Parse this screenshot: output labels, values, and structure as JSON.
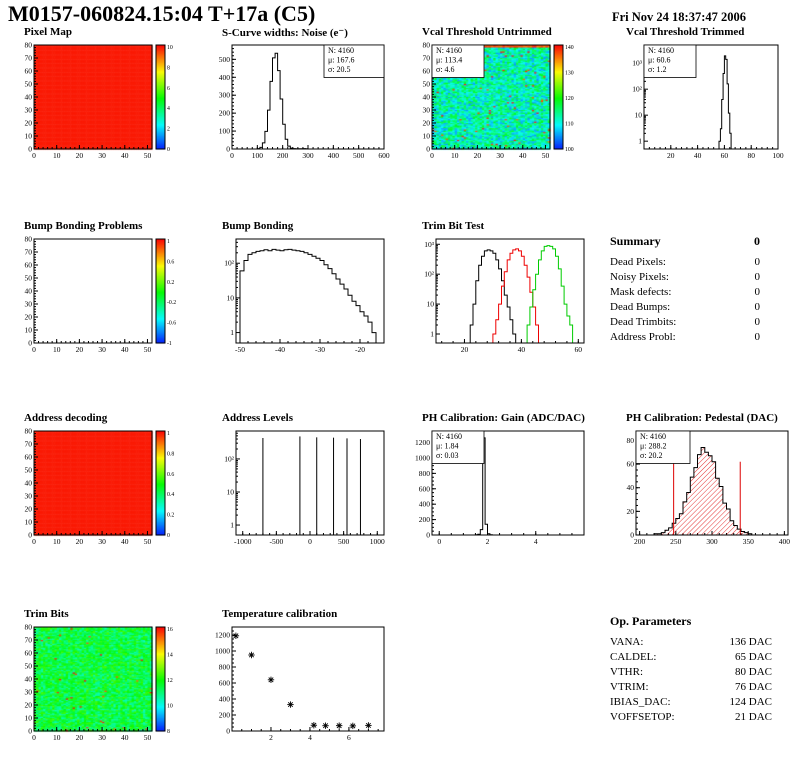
{
  "header": {
    "title": "M0157-060824.15:04 T+17a (C5)",
    "datetime": "Fri Nov 24 18:37:47 2006"
  },
  "summary": {
    "title": "Summary",
    "total": "0",
    "rows": [
      {
        "label": "Dead Pixels:",
        "value": "0"
      },
      {
        "label": "Noisy Pixels:",
        "value": "0"
      },
      {
        "label": "Mask defects:",
        "value": "0"
      },
      {
        "label": "Dead Bumps:",
        "value": "0"
      },
      {
        "label": "Dead Trimbits:",
        "value": "0"
      },
      {
        "label": "Address Probl:",
        "value": "0"
      }
    ]
  },
  "op_parameters": {
    "title": "Op. Parameters",
    "rows": [
      {
        "label": "VANA:",
        "value": "136 DAC"
      },
      {
        "label": "CALDEL:",
        "value": "65 DAC"
      },
      {
        "label": "VTHR:",
        "value": "80 DAC"
      },
      {
        "label": "VTRIM:",
        "value": "76 DAC"
      },
      {
        "label": "IBIAS_DAC:",
        "value": "124 DAC"
      },
      {
        "label": "VOFFSETOP:",
        "value": "21 DAC"
      }
    ]
  },
  "chart_data": [
    {
      "id": "pixel-map",
      "title": "Pixel Map",
      "type": "heatmap",
      "fill": "solid",
      "xrange": [
        0,
        52
      ],
      "yrange": [
        0,
        80
      ],
      "xticks": [
        0,
        10,
        20,
        30,
        40,
        50
      ],
      "yticks": [
        0,
        10,
        20,
        30,
        40,
        50,
        60,
        70,
        80
      ],
      "xminor": 2,
      "yminor": 2,
      "colorbar": {
        "labels": [
          "10",
          "8",
          "6",
          "4",
          "2",
          "0"
        ]
      }
    },
    {
      "id": "scurve-noise",
      "title": "S-Curve widths: Noise (e⁻)",
      "type": "hist",
      "color": "#000000",
      "bw": 10,
      "xrange": [
        0,
        600
      ],
      "yrange": [
        0,
        580
      ],
      "xticks": [
        0,
        100,
        200,
        300,
        400,
        500,
        600
      ],
      "yticks": [
        0,
        100,
        200,
        300,
        400,
        500
      ],
      "xminor": 20,
      "yminor": 20,
      "bins": [
        [
          100,
          2
        ],
        [
          110,
          9
        ],
        [
          120,
          34
        ],
        [
          130,
          98
        ],
        [
          140,
          217
        ],
        [
          150,
          377
        ],
        [
          160,
          508
        ],
        [
          170,
          534
        ],
        [
          180,
          437
        ],
        [
          190,
          279
        ],
        [
          200,
          138
        ],
        [
          210,
          54
        ],
        [
          220,
          16
        ],
        [
          230,
          5
        ],
        [
          240,
          2
        ],
        [
          250,
          1
        ],
        [
          260,
          1
        ],
        [
          270,
          1
        ],
        [
          280,
          2
        ],
        [
          290,
          1
        ]
      ],
      "stats": {
        "pos": "tr",
        "w": 60,
        "lines": [
          [
            "N: 4160",
            "#000000"
          ],
          [
            "μ: 167.6",
            "#000000"
          ],
          [
            "σ: 20.5",
            "#000000"
          ]
        ]
      }
    },
    {
      "id": "vcal-untrimmed",
      "title": "Vcal Threshold Untrimmed",
      "type": "heatmap",
      "fill": "noise",
      "seed": 42,
      "noise": {
        "t_base": 0.3,
        "t_spread": 0.17,
        "hot_frac": 0.02,
        "top_rows": 2
      },
      "xrange": [
        0,
        52
      ],
      "yrange": [
        0,
        80
      ],
      "xticks": [
        0,
        10,
        20,
        30,
        40,
        50
      ],
      "yticks": [
        0,
        10,
        20,
        30,
        40,
        50,
        60,
        70,
        80
      ],
      "xminor": 2,
      "yminor": 2,
      "colorbar": {
        "labels": [
          "140",
          "130",
          "120",
          "110",
          "100"
        ]
      },
      "stats": {
        "pos": "tl",
        "w": 52,
        "lines": [
          [
            "N: 4160",
            "#000000"
          ],
          [
            "μ: 113.4",
            "#000000"
          ],
          [
            "σ: 4.6",
            "#000000"
          ]
        ]
      }
    },
    {
      "id": "vcal-trimmed",
      "title": "Vcal Threshold Trimmed",
      "type": "hist",
      "color": "#000000",
      "bw": 1,
      "frame": {
        "x": 34,
        "w": 134
      },
      "xrange": [
        0,
        100
      ],
      "xticks": [
        20,
        40,
        60,
        80,
        100
      ],
      "xminor": 4,
      "ylog": {
        "min": 0.5,
        "max": 5000,
        "decades": [
          0,
          1,
          2,
          3
        ]
      },
      "bins": [
        [
          56,
          1
        ],
        [
          57,
          3
        ],
        [
          58,
          40
        ],
        [
          59,
          400
        ],
        [
          60,
          1900
        ],
        [
          61,
          1400
        ],
        [
          62,
          160
        ],
        [
          63,
          12
        ],
        [
          64,
          2
        ]
      ],
      "stats": {
        "pos": "tl",
        "w": 52,
        "lines": [
          [
            "N: 4160",
            "#000000"
          ],
          [
            "μ: 60.6",
            "#000000"
          ],
          [
            "σ: 1.2",
            "#000000"
          ]
        ]
      }
    },
    {
      "id": "bump-problems",
      "title": "Bump Bonding Problems",
      "type": "heatmap",
      "fill": "none",
      "xrange": [
        0,
        52
      ],
      "yrange": [
        0,
        80
      ],
      "xticks": [
        0,
        10,
        20,
        30,
        40,
        50
      ],
      "yticks": [
        0,
        10,
        20,
        30,
        40,
        50,
        60,
        70,
        80
      ],
      "xminor": 2,
      "yminor": 2,
      "colorbar": {
        "labels": [
          "1",
          "0.6",
          "0.2",
          "-0.2",
          "-0.6",
          "-1"
        ]
      }
    },
    {
      "id": "bump-bonding",
      "title": "Bump Bonding",
      "type": "hist",
      "color": "#000000",
      "bw": 1,
      "frame": {
        "x": 30,
        "w": 148
      },
      "xrange": [
        -51,
        -14
      ],
      "xticks": [
        -50,
        -40,
        -30,
        -20
      ],
      "xminor": 2,
      "ylog": {
        "min": 0.5,
        "max": 500,
        "decades": [
          0,
          1,
          2
        ]
      },
      "bins": [
        [
          -50,
          60
        ],
        [
          -49,
          120
        ],
        [
          -48,
          180
        ],
        [
          -47,
          200
        ],
        [
          -46,
          220
        ],
        [
          -45,
          230
        ],
        [
          -44,
          245
        ],
        [
          -43,
          230
        ],
        [
          -42,
          250
        ],
        [
          -41,
          240
        ],
        [
          -40,
          230
        ],
        [
          -39,
          245
        ],
        [
          -38,
          250
        ],
        [
          -37,
          240
        ],
        [
          -36,
          230
        ],
        [
          -35,
          220
        ],
        [
          -34,
          200
        ],
        [
          -33,
          180
        ],
        [
          -32,
          160
        ],
        [
          -31,
          140
        ],
        [
          -30,
          120
        ],
        [
          -29,
          90
        ],
        [
          -28,
          70
        ],
        [
          -27,
          50
        ],
        [
          -26,
          35
        ],
        [
          -25,
          25
        ],
        [
          -24,
          18
        ],
        [
          -23,
          12
        ],
        [
          -22,
          8
        ],
        [
          -21,
          6
        ],
        [
          -20,
          4
        ],
        [
          -19,
          3
        ],
        [
          -18,
          2
        ],
        [
          -17,
          1
        ]
      ]
    },
    {
      "id": "trim-bit-test",
      "title": "Trim Bit Test",
      "type": "multi-hist",
      "bw": 1,
      "frame": {
        "x": 30,
        "w": 148
      },
      "xrange": [
        10,
        62
      ],
      "xticks": [
        20,
        40,
        60
      ],
      "xminor": 4,
      "ylog": {
        "min": 0.5,
        "max": 1500,
        "decades": [
          0,
          1,
          2,
          3
        ]
      },
      "series": [
        {
          "name": "trim-bit-0",
          "color": "#000000",
          "bins": [
            [
              22,
              2
            ],
            [
              23,
              10
            ],
            [
              24,
              60
            ],
            [
              25,
              200
            ],
            [
              26,
              400
            ],
            [
              27,
              600
            ],
            [
              28,
              650
            ],
            [
              29,
              600
            ],
            [
              30,
              500
            ],
            [
              31,
              300
            ],
            [
              32,
              150
            ],
            [
              33,
              60
            ],
            [
              34,
              20
            ],
            [
              35,
              8
            ],
            [
              36,
              3
            ],
            [
              37,
              1
            ]
          ]
        },
        {
          "name": "trim-bit-1",
          "color": "#ee0000",
          "bins": [
            [
              30,
              1
            ],
            [
              31,
              3
            ],
            [
              32,
              10
            ],
            [
              33,
              40
            ],
            [
              34,
              120
            ],
            [
              35,
              300
            ],
            [
              36,
              500
            ],
            [
              37,
              650
            ],
            [
              38,
              700
            ],
            [
              39,
              600
            ],
            [
              40,
              400
            ],
            [
              41,
              200
            ],
            [
              42,
              80
            ],
            [
              43,
              25
            ],
            [
              44,
              8
            ],
            [
              45,
              2
            ]
          ]
        },
        {
          "name": "trim-bit-2",
          "color": "#00cc00",
          "bins": [
            [
              42,
              2
            ],
            [
              43,
              8
            ],
            [
              44,
              30
            ],
            [
              45,
              100
            ],
            [
              46,
              300
            ],
            [
              47,
              600
            ],
            [
              48,
              850
            ],
            [
              49,
              900
            ],
            [
              50,
              850
            ],
            [
              51,
              700
            ],
            [
              52,
              400
            ],
            [
              53,
              150
            ],
            [
              54,
              40
            ],
            [
              55,
              10
            ],
            [
              56,
              4
            ],
            [
              57,
              2
            ]
          ]
        }
      ]
    },
    {
      "id": "address-decoding",
      "title": "Address decoding",
      "type": "heatmap",
      "fill": "solid",
      "xrange": [
        0,
        52
      ],
      "yrange": [
        0,
        80
      ],
      "xticks": [
        0,
        10,
        20,
        30,
        40,
        50
      ],
      "yticks": [
        0,
        10,
        20,
        30,
        40,
        50,
        60,
        70,
        80
      ],
      "xminor": 2,
      "yminor": 2,
      "colorbar": {
        "labels": [
          "1",
          "0.8",
          "0.6",
          "0.4",
          "0.2",
          "0"
        ]
      }
    },
    {
      "id": "address-levels",
      "title": "Address Levels",
      "type": "spikes",
      "frame": {
        "x": 30,
        "w": 148
      },
      "xrange": [
        -1100,
        1100
      ],
      "xticks": [
        -1000,
        -500,
        0,
        500,
        1000
      ],
      "xminor": 100,
      "ylog": {
        "min": 0.5,
        "max": 700,
        "decades": [
          0,
          1,
          2
        ]
      },
      "spikes": [
        [
          -700,
          430
        ],
        [
          -150,
          480
        ],
        [
          100,
          450
        ],
        [
          350,
          440
        ],
        [
          550,
          420
        ],
        [
          750,
          400
        ]
      ]
    },
    {
      "id": "ph-gain",
      "title": "PH Calibration: Gain (ADC/DAC)",
      "type": "hist",
      "color": "#000000",
      "bw": 0.1,
      "xrange": [
        -0.3,
        6
      ],
      "xticks": [
        0,
        2,
        4
      ],
      "xminor": 0.5,
      "yrange": [
        0,
        1350
      ],
      "yticks": [
        0,
        200,
        400,
        600,
        800,
        1000,
        1200
      ],
      "yminor": 50,
      "bins": [
        [
          1.5,
          2
        ],
        [
          1.6,
          10
        ],
        [
          1.7,
          70
        ],
        [
          1.8,
          1260
        ],
        [
          1.9,
          140
        ],
        [
          2.0,
          15
        ],
        [
          2.1,
          3
        ]
      ],
      "stats": {
        "pos": "tl",
        "w": 52,
        "lines": [
          [
            "N: 4160",
            "#000000"
          ],
          [
            "μ: 1.84",
            "#000000"
          ],
          [
            "σ: 0.03",
            "#000000"
          ]
        ]
      }
    },
    {
      "id": "ph-pedestal",
      "title": "PH Calibration: Pedestal (DAC)",
      "type": "hist",
      "color": "#000000",
      "bw": 5,
      "hatch": "#dd0000",
      "xrange": [
        195,
        405
      ],
      "xticks": [
        200,
        250,
        300,
        350,
        400
      ],
      "xminor": 10,
      "yrange": [
        0,
        88
      ],
      "yticks": [
        0,
        20,
        40,
        60,
        80
      ],
      "yminor": 5,
      "bins": [
        [
          220,
          1
        ],
        [
          225,
          1
        ],
        [
          230,
          2
        ],
        [
          235,
          4
        ],
        [
          240,
          6
        ],
        [
          245,
          10
        ],
        [
          250,
          14
        ],
        [
          255,
          18
        ],
        [
          260,
          28
        ],
        [
          265,
          36
        ],
        [
          270,
          49
        ],
        [
          275,
          57
        ],
        [
          280,
          68
        ],
        [
          285,
          74
        ],
        [
          290,
          70
        ],
        [
          295,
          67
        ],
        [
          300,
          62
        ],
        [
          305,
          48
        ],
        [
          310,
          41
        ],
        [
          315,
          27
        ],
        [
          320,
          22
        ],
        [
          325,
          12
        ],
        [
          330,
          8
        ],
        [
          335,
          5
        ],
        [
          340,
          3
        ],
        [
          345,
          2
        ],
        [
          350,
          1
        ]
      ],
      "fit_lines": [
        {
          "x": 247,
          "y": 62
        },
        {
          "x": 339,
          "y": 62
        }
      ],
      "stats": {
        "pos": "tl",
        "w": 54,
        "lines": [
          [
            "N: 4160",
            "#000000"
          ],
          [
            "μ: 288.2",
            "#cc0000"
          ],
          [
            "σ: 20.2",
            "#cc0000"
          ]
        ]
      }
    },
    {
      "id": "trim-bits",
      "title": "Trim Bits",
      "type": "heatmap",
      "fill": "noise",
      "seed": 9,
      "noise": {
        "t_base": 0.43,
        "t_spread": 0.13,
        "hot_frac": 0.01,
        "top_rows": 0
      },
      "xrange": [
        0,
        52
      ],
      "yrange": [
        0,
        80
      ],
      "xticks": [
        0,
        10,
        20,
        30,
        40,
        50
      ],
      "yticks": [
        0,
        10,
        20,
        30,
        40,
        50,
        60,
        70,
        80
      ],
      "xminor": 2,
      "yminor": 2,
      "colorbar": {
        "labels": [
          "16",
          "14",
          "12",
          "10",
          "8"
        ]
      }
    },
    {
      "id": "temp-cal",
      "title": "Temperature calibration",
      "type": "scatter",
      "marker": "asterisk",
      "xrange": [
        0,
        7.8
      ],
      "xticks": [
        2,
        4,
        6
      ],
      "xminor": 0.5,
      "yrange": [
        0,
        1300
      ],
      "yticks": [
        0,
        200,
        400,
        600,
        800,
        1000,
        1200
      ],
      "yminor": 50,
      "points": [
        [
          0.2,
          1190
        ],
        [
          1.0,
          950
        ],
        [
          2.0,
          640
        ],
        [
          3.0,
          330
        ],
        [
          4.2,
          72
        ],
        [
          4.8,
          66
        ],
        [
          5.5,
          67
        ],
        [
          6.2,
          64
        ],
        [
          7.0,
          70
        ]
      ]
    }
  ]
}
